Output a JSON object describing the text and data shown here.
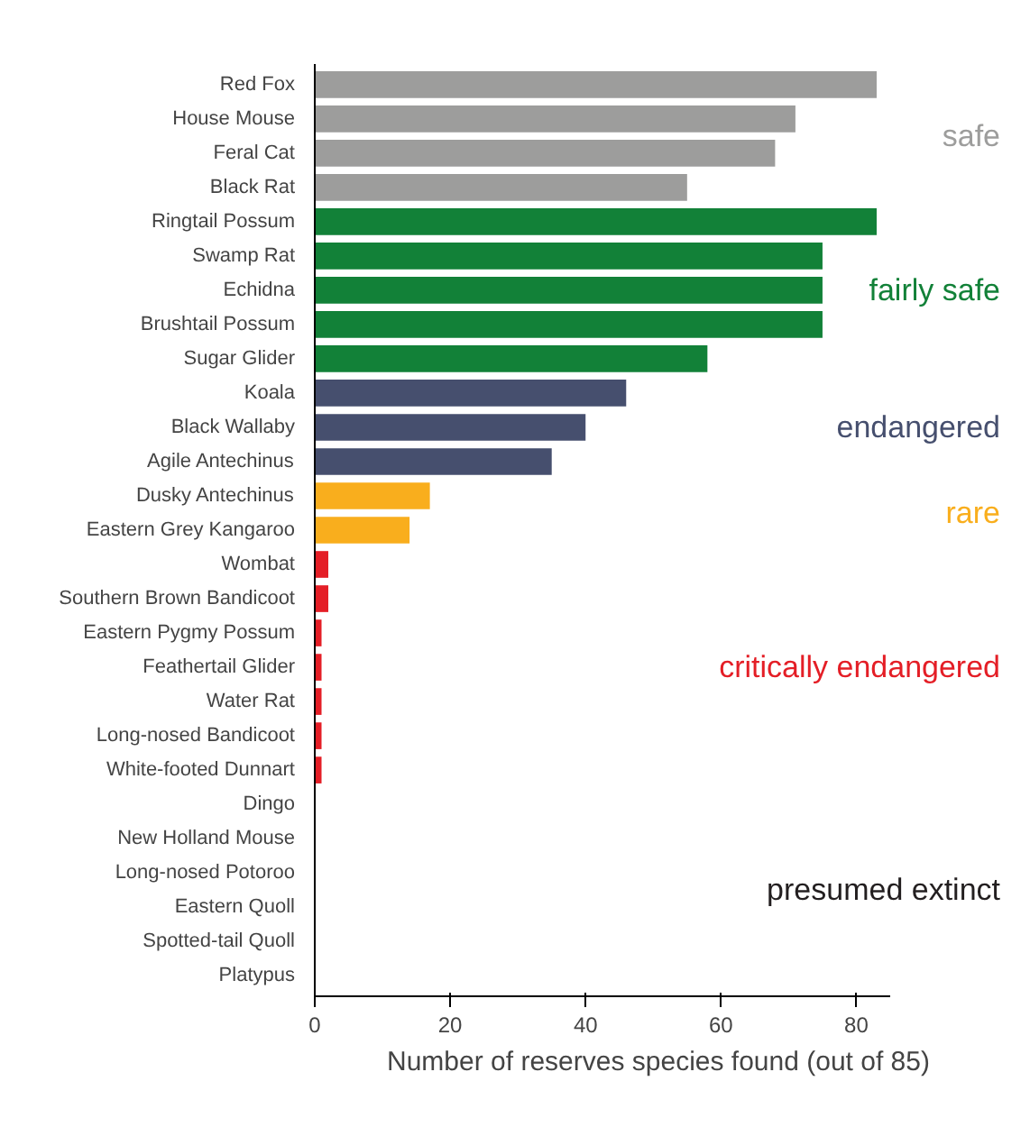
{
  "chart_data": {
    "type": "bar",
    "orientation": "horizontal",
    "xlabel": "Number of reserves species found (out of 85)",
    "categories": [
      "Red Fox",
      "House Mouse",
      "Feral Cat",
      "Black Rat",
      "Ringtail Possum",
      "Swamp Rat",
      "Echidna",
      "Brushtail Possum",
      "Sugar Glider",
      "Koala",
      "Black Wallaby",
      "Agile Antechinus",
      "Dusky Antechinus",
      "Eastern Grey Kangaroo",
      "Wombat",
      "Southern Brown Bandicoot",
      "Eastern Pygmy Possum",
      "Feathertail Glider",
      "Water Rat",
      "Long-nosed Bandicoot",
      "White-footed Dunnart",
      "Dingo",
      "New Holland Mouse",
      "Long-nosed Potoroo",
      "Eastern Quoll",
      "Spotted-tail Quoll",
      "Platypus"
    ],
    "series": [
      {
        "name": "safe",
        "color": "#9d9d9c",
        "values": [
          83,
          71,
          68,
          55,
          null,
          null,
          null,
          null,
          null,
          null,
          null,
          null,
          null,
          null,
          null,
          null,
          null,
          null,
          null,
          null,
          null,
          null,
          null,
          null,
          null,
          null,
          null
        ]
      },
      {
        "name": "fairly safe",
        "color": "#128138",
        "values": [
          null,
          null,
          null,
          null,
          83,
          75,
          75,
          75,
          58,
          null,
          null,
          null,
          null,
          null,
          null,
          null,
          null,
          null,
          null,
          null,
          null,
          null,
          null,
          null,
          null,
          null,
          null
        ]
      },
      {
        "name": "endangered",
        "color": "#464f6e",
        "values": [
          null,
          null,
          null,
          null,
          null,
          null,
          null,
          null,
          null,
          46,
          40,
          35,
          null,
          null,
          null,
          null,
          null,
          null,
          null,
          null,
          null,
          null,
          null,
          null,
          null,
          null,
          null
        ]
      },
      {
        "name": "rare",
        "color": "#f9ae1d",
        "values": [
          null,
          null,
          null,
          null,
          null,
          null,
          null,
          null,
          null,
          null,
          null,
          null,
          17,
          14,
          null,
          null,
          null,
          null,
          null,
          null,
          null,
          null,
          null,
          null,
          null,
          null,
          null
        ]
      },
      {
        "name": "critically endangered",
        "color": "#e41e26",
        "values": [
          null,
          null,
          null,
          null,
          null,
          null,
          null,
          null,
          null,
          null,
          null,
          null,
          null,
          null,
          2,
          2,
          1,
          1,
          1,
          1,
          1,
          null,
          null,
          null,
          null,
          null,
          null
        ]
      },
      {
        "name": "presumed extinct",
        "color": "#231f20",
        "values": [
          null,
          null,
          null,
          null,
          null,
          null,
          null,
          null,
          null,
          null,
          null,
          null,
          null,
          null,
          null,
          null,
          null,
          null,
          null,
          null,
          null,
          0,
          0,
          0,
          0,
          0,
          0
        ]
      }
    ],
    "xlim": [
      0,
      85
    ],
    "xticks": [
      0,
      20,
      40,
      60,
      80
    ],
    "grid": false,
    "legend": "right"
  }
}
